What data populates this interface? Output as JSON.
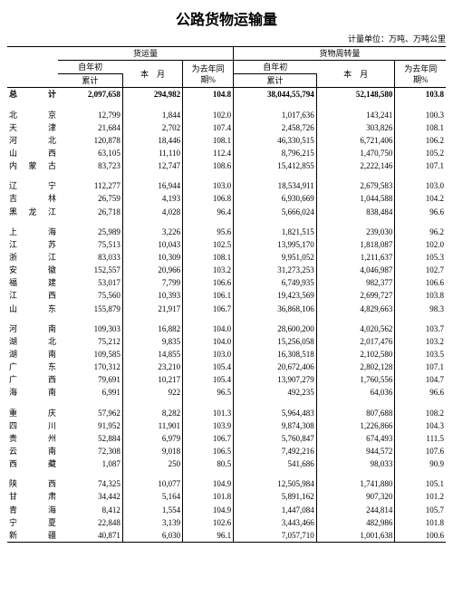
{
  "title": "公路货物运输量",
  "unit_label": "计量单位：万吨、万吨公里",
  "title_fontsize": 16,
  "unit_fontsize": 9,
  "headers": {
    "group1": "货运量",
    "group2": "货物周转量",
    "since_start": "自年初",
    "cumulative": "累计",
    "this_month": "本　月",
    "yoy": "为去年同期%"
  },
  "total_label": "总　计",
  "total": {
    "a": "2,097,658",
    "b": "294,982",
    "c": "104.8",
    "d": "38,044,55,794",
    "e": "52,148,580",
    "f": "103.8"
  },
  "groups": [
    [
      {
        "region": "北　京",
        "a": "12,799",
        "b": "1,844",
        "c": "102.0",
        "d": "1,017,636",
        "e": "143,241",
        "f": "100.3"
      },
      {
        "region": "天　津",
        "a": "21,684",
        "b": "2,702",
        "c": "107.4",
        "d": "2,458,726",
        "e": "303,826",
        "f": "108.1"
      },
      {
        "region": "河　北",
        "a": "120,878",
        "b": "18,446",
        "c": "108.1",
        "d": "46,330,515",
        "e": "6,721,406",
        "f": "106.2"
      },
      {
        "region": "山　西",
        "a": "63,105",
        "b": "11,110",
        "c": "112.4",
        "d": "8,796,215",
        "e": "1,470,750",
        "f": "105.2"
      },
      {
        "region": "内蒙古",
        "a": "83,723",
        "b": "12,747",
        "c": "108.6",
        "d": "15,412,855",
        "e": "2,222,146",
        "f": "107.1"
      }
    ],
    [
      {
        "region": "辽　宁",
        "a": "112,277",
        "b": "16,944",
        "c": "103.0",
        "d": "18,534,911",
        "e": "2,679,583",
        "f": "103.0"
      },
      {
        "region": "吉　林",
        "a": "26,759",
        "b": "4,193",
        "c": "106.8",
        "d": "6,930,669",
        "e": "1,044,588",
        "f": "104.2"
      },
      {
        "region": "黑龙江",
        "a": "26,718",
        "b": "4,028",
        "c": "96.4",
        "d": "5,666,024",
        "e": "838,484",
        "f": "96.6"
      }
    ],
    [
      {
        "region": "上　海",
        "a": "25,989",
        "b": "3,226",
        "c": "95.6",
        "d": "1,821,515",
        "e": "239,030",
        "f": "96.2"
      },
      {
        "region": "江　苏",
        "a": "75,513",
        "b": "10,043",
        "c": "102.5",
        "d": "13,995,170",
        "e": "1,818,087",
        "f": "102.0"
      },
      {
        "region": "浙　江",
        "a": "83,033",
        "b": "10,309",
        "c": "108.1",
        "d": "9,951,052",
        "e": "1,211,637",
        "f": "105.3"
      },
      {
        "region": "安　徽",
        "a": "152,557",
        "b": "20,966",
        "c": "103.2",
        "d": "31,273,253",
        "e": "4,046,987",
        "f": "102.7"
      },
      {
        "region": "福　建",
        "a": "53,017",
        "b": "7,799",
        "c": "106.6",
        "d": "6,749,935",
        "e": "982,377",
        "f": "106.6"
      },
      {
        "region": "江　西",
        "a": "75,560",
        "b": "10,393",
        "c": "106.1",
        "d": "19,423,569",
        "e": "2,699,727",
        "f": "103.8"
      },
      {
        "region": "山　东",
        "a": "155,879",
        "b": "21,917",
        "c": "106.7",
        "d": "36,868,106",
        "e": "4,829,663",
        "f": "98.3"
      }
    ],
    [
      {
        "region": "河　南",
        "a": "109,303",
        "b": "16,882",
        "c": "104.0",
        "d": "28,600,200",
        "e": "4,020,562",
        "f": "103.7"
      },
      {
        "region": "湖　北",
        "a": "75,212",
        "b": "9,835",
        "c": "104.0",
        "d": "15,256,058",
        "e": "2,017,476",
        "f": "103.2"
      },
      {
        "region": "湖　南",
        "a": "109,585",
        "b": "14,855",
        "c": "103.0",
        "d": "16,308,518",
        "e": "2,102,580",
        "f": "103.5"
      },
      {
        "region": "广　东",
        "a": "170,312",
        "b": "23,210",
        "c": "105.4",
        "d": "20,672,406",
        "e": "2,802,128",
        "f": "107.1"
      },
      {
        "region": "广　西",
        "a": "79,691",
        "b": "10,217",
        "c": "105.4",
        "d": "13,907,279",
        "e": "1,760,556",
        "f": "104.7"
      },
      {
        "region": "海　南",
        "a": "6,991",
        "b": "922",
        "c": "96.5",
        "d": "492,235",
        "e": "64,036",
        "f": "96.6"
      }
    ],
    [
      {
        "region": "重　庆",
        "a": "57,962",
        "b": "8,282",
        "c": "101.3",
        "d": "5,964,483",
        "e": "807,688",
        "f": "108.2"
      },
      {
        "region": "四　川",
        "a": "91,952",
        "b": "11,901",
        "c": "103.9",
        "d": "9,874,308",
        "e": "1,226,866",
        "f": "104.3"
      },
      {
        "region": "贵　州",
        "a": "52,884",
        "b": "6,979",
        "c": "106.7",
        "d": "5,760,847",
        "e": "674,493",
        "f": "111.5"
      },
      {
        "region": "云　南",
        "a": "72,308",
        "b": "9,018",
        "c": "106.5",
        "d": "7,492,216",
        "e": "944,572",
        "f": "107.6"
      },
      {
        "region": "西　藏",
        "a": "1,087",
        "b": "250",
        "c": "80.5",
        "d": "541,686",
        "e": "98,033",
        "f": "90.9"
      }
    ],
    [
      {
        "region": "陕　西",
        "a": "74,325",
        "b": "10,077",
        "c": "104.9",
        "d": "12,505,984",
        "e": "1,741,880",
        "f": "105.1"
      },
      {
        "region": "甘　肃",
        "a": "34,442",
        "b": "5,164",
        "c": "101.8",
        "d": "5,891,162",
        "e": "907,320",
        "f": "101.2"
      },
      {
        "region": "青　海",
        "a": "8,412",
        "b": "1,554",
        "c": "104.9",
        "d": "1,447,084",
        "e": "244,814",
        "f": "105.7"
      },
      {
        "region": "宁　夏",
        "a": "22,848",
        "b": "3,139",
        "c": "102.6",
        "d": "3,443,466",
        "e": "482,986",
        "f": "101.8"
      },
      {
        "region": "新　疆",
        "a": "40,871",
        "b": "6,030",
        "c": "96.1",
        "d": "7,057,710",
        "e": "1,001,638",
        "f": "100.6"
      }
    ]
  ]
}
